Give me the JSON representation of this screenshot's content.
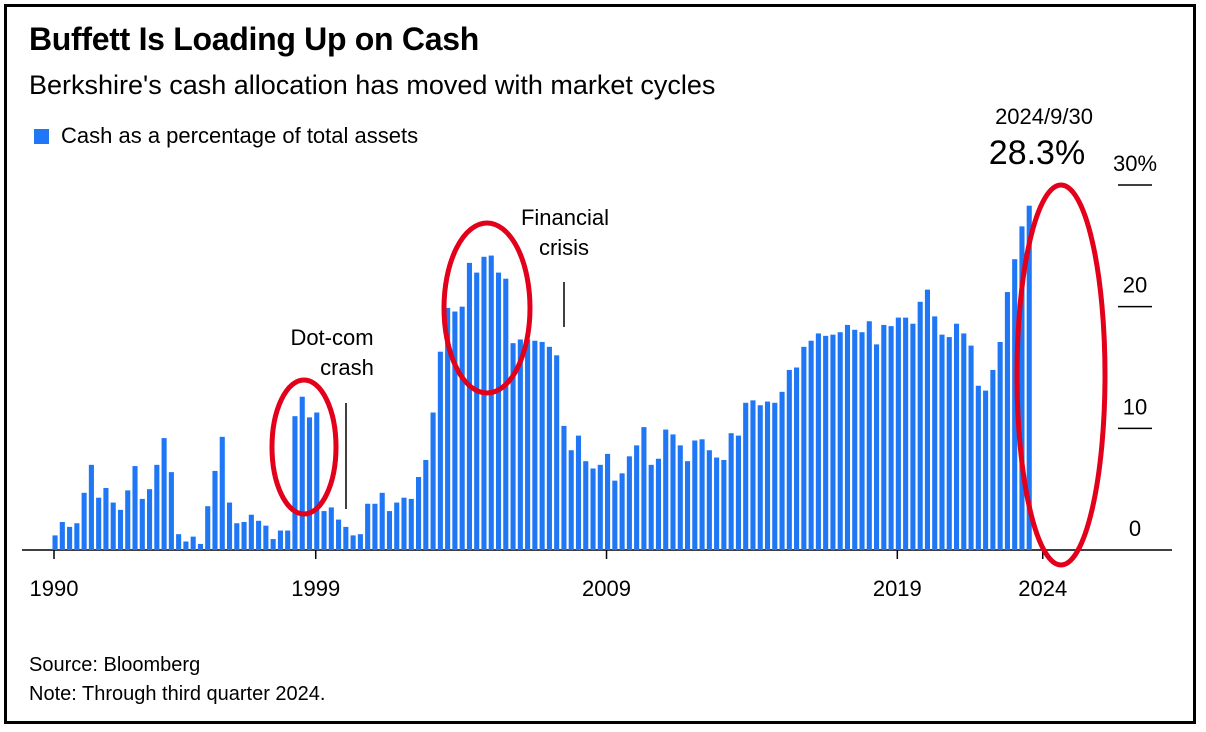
{
  "title": "Buffett Is Loading Up on Cash",
  "subtitle": "Berkshire's cash allocation has moved with market cycles",
  "legend_label": "Cash as a percentage of total assets",
  "source": "Source: Bloomberg",
  "note": "Note: Through third quarter 2024.",
  "colors": {
    "bar": "#1f77f5",
    "highlight": "#e3001b",
    "text": "#000000"
  },
  "annotations": {
    "dotcom_line1": "Dot-com",
    "dotcom_line2": "crash",
    "financial_line1": "Financial",
    "financial_line2": "crisis",
    "last_date": "2024/9/30",
    "last_value": "28.3%"
  },
  "chart_data": {
    "type": "bar",
    "title": "Buffett Is Loading Up on Cash",
    "series_name": "Cash as a percentage of total assets",
    "frequency": "quarterly",
    "start": "1990",
    "end": "2024/9/30",
    "ylim": [
      0,
      30
    ],
    "yticks": [
      {
        "value": 0,
        "label": "0"
      },
      {
        "value": 10,
        "label": "10"
      },
      {
        "value": 20,
        "label": "20"
      },
      {
        "value": 30,
        "label": "30%"
      }
    ],
    "xticks": [
      {
        "year": 1990,
        "label": "1990"
      },
      {
        "year": 1999,
        "label": "1999"
      },
      {
        "year": 2009,
        "label": "2009"
      },
      {
        "year": 2019,
        "label": "2019"
      },
      {
        "year": 2024,
        "label": "2024"
      }
    ],
    "values": [
      1.2,
      2.3,
      1.9,
      2.2,
      4.7,
      7.0,
      4.3,
      5.1,
      3.9,
      3.3,
      4.9,
      6.9,
      4.2,
      5.0,
      7.0,
      9.2,
      6.4,
      1.3,
      0.7,
      1.1,
      0.5,
      3.6,
      6.5,
      9.3,
      3.9,
      2.2,
      2.3,
      2.9,
      2.4,
      2.0,
      0.9,
      1.6,
      1.6,
      11.0,
      12.6,
      10.9,
      11.3,
      3.2,
      3.5,
      2.5,
      1.9,
      1.2,
      1.3,
      3.8,
      3.8,
      4.7,
      3.2,
      3.9,
      4.3,
      4.2,
      6.0,
      7.4,
      11.3,
      16.3,
      19.9,
      19.6,
      20.0,
      23.6,
      22.8,
      24.1,
      24.2,
      22.8,
      22.3,
      17.0,
      17.3,
      17.3,
      17.2,
      17.1,
      16.7,
      16.0,
      10.2,
      8.2,
      9.4,
      7.3,
      6.7,
      7.0,
      7.9,
      5.7,
      6.3,
      7.7,
      8.6,
      10.1,
      7.0,
      7.5,
      9.9,
      9.5,
      8.6,
      7.3,
      9.0,
      9.1,
      8.2,
      7.6,
      7.4,
      9.6,
      9.4,
      12.1,
      12.3,
      11.9,
      12.2,
      12.1,
      13.0,
      14.8,
      15.0,
      16.7,
      17.2,
      17.8,
      17.6,
      17.7,
      17.9,
      18.5,
      18.1,
      17.9,
      18.8,
      16.9,
      18.5,
      18.4,
      19.1,
      19.1,
      18.6,
      20.4,
      21.4,
      19.2,
      17.7,
      17.5,
      18.6,
      17.8,
      16.8,
      13.5,
      13.1,
      14.8,
      17.1,
      21.2,
      23.9,
      26.6,
      28.3
    ]
  }
}
